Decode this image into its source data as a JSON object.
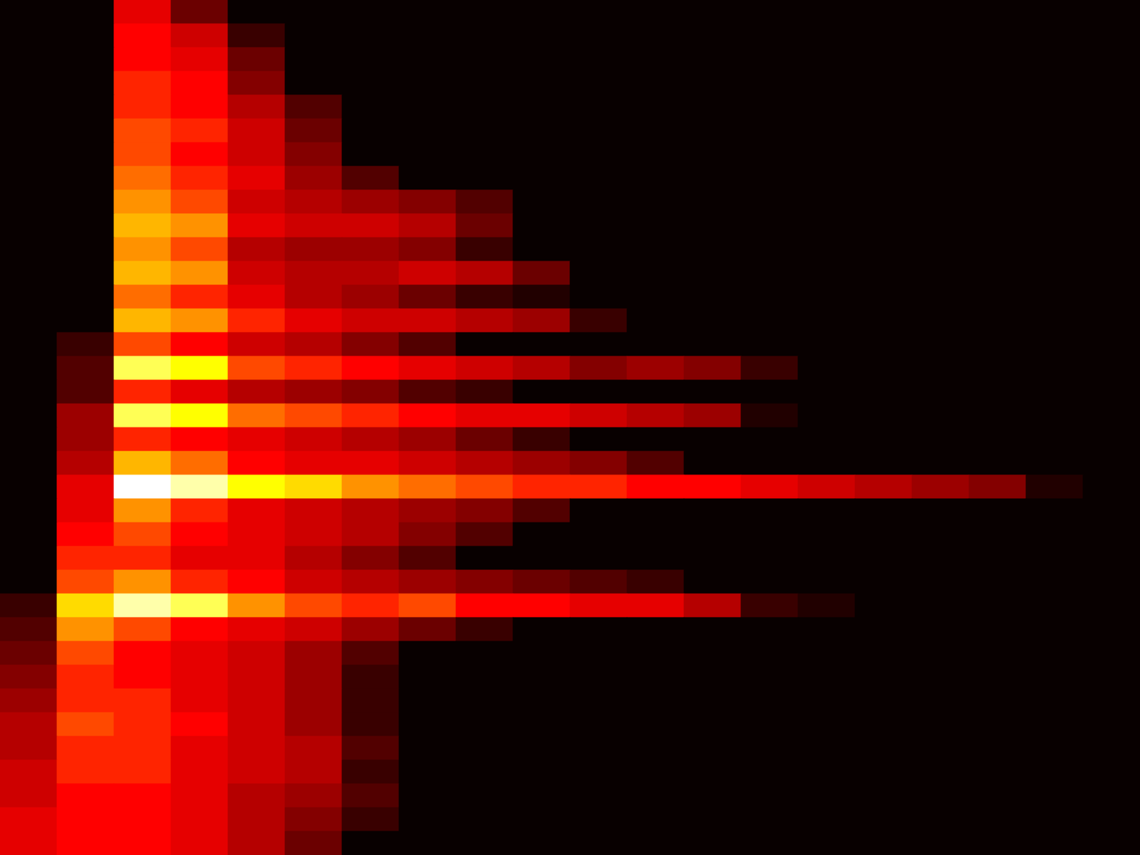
{
  "chart_data": {
    "type": "heatmap",
    "color": "hot",
    "tick_labels": false,
    "zlim": [
      0,
      1
    ],
    "cells": [
      [
        0,
        0,
        0.45,
        0.2,
        0,
        0,
        0,
        0,
        0,
        0,
        0,
        0,
        0,
        0,
        0,
        0,
        0,
        0,
        0,
        0
      ],
      [
        0,
        0,
        0.5,
        0.4,
        0.1,
        0,
        0,
        0,
        0,
        0,
        0,
        0,
        0,
        0,
        0,
        0,
        0,
        0,
        0,
        0
      ],
      [
        0,
        0,
        0.5,
        0.45,
        0.2,
        0,
        0,
        0,
        0,
        0,
        0,
        0,
        0,
        0,
        0,
        0,
        0,
        0,
        0,
        0
      ],
      [
        0,
        0,
        0.55,
        0.5,
        0.25,
        0,
        0,
        0,
        0,
        0,
        0,
        0,
        0,
        0,
        0,
        0,
        0,
        0,
        0,
        0
      ],
      [
        0,
        0,
        0.55,
        0.5,
        0.35,
        0.15,
        0,
        0,
        0,
        0,
        0,
        0,
        0,
        0,
        0,
        0,
        0,
        0,
        0,
        0
      ],
      [
        0,
        0,
        0.6,
        0.55,
        0.4,
        0.2,
        0,
        0,
        0,
        0,
        0,
        0,
        0,
        0,
        0,
        0,
        0,
        0,
        0,
        0
      ],
      [
        0,
        0,
        0.6,
        0.5,
        0.4,
        0.25,
        0,
        0,
        0,
        0,
        0,
        0,
        0,
        0,
        0,
        0,
        0,
        0,
        0,
        0
      ],
      [
        0,
        0,
        0.65,
        0.55,
        0.45,
        0.3,
        0.15,
        0,
        0,
        0,
        0,
        0,
        0,
        0,
        0,
        0,
        0,
        0,
        0,
        0
      ],
      [
        0,
        0,
        0.7,
        0.6,
        0.4,
        0.35,
        0.3,
        0.25,
        0.15,
        0,
        0,
        0,
        0,
        0,
        0,
        0,
        0,
        0,
        0,
        0
      ],
      [
        0,
        0,
        0.75,
        0.7,
        0.45,
        0.4,
        0.4,
        0.35,
        0.2,
        0,
        0,
        0,
        0,
        0,
        0,
        0,
        0,
        0,
        0,
        0
      ],
      [
        0,
        0,
        0.7,
        0.6,
        0.35,
        0.3,
        0.3,
        0.25,
        0.1,
        0,
        0,
        0,
        0,
        0,
        0,
        0,
        0,
        0,
        0,
        0
      ],
      [
        0,
        0,
        0.75,
        0.7,
        0.4,
        0.35,
        0.35,
        0.4,
        0.35,
        0.2,
        0,
        0,
        0,
        0,
        0,
        0,
        0,
        0,
        0,
        0
      ],
      [
        0,
        0,
        0.65,
        0.55,
        0.45,
        0.35,
        0.3,
        0.2,
        0.1,
        0.05,
        0,
        0,
        0,
        0,
        0,
        0,
        0,
        0,
        0,
        0
      ],
      [
        0,
        0,
        0.75,
        0.7,
        0.55,
        0.45,
        0.4,
        0.4,
        0.35,
        0.3,
        0.1,
        0,
        0,
        0,
        0,
        0,
        0,
        0,
        0,
        0
      ],
      [
        0,
        0.1,
        0.6,
        0.5,
        0.4,
        0.35,
        0.25,
        0.15,
        0,
        0,
        0,
        0,
        0,
        0,
        0,
        0,
        0,
        0,
        0,
        0
      ],
      [
        0,
        0.15,
        0.9,
        0.85,
        0.6,
        0.55,
        0.5,
        0.45,
        0.4,
        0.35,
        0.25,
        0.3,
        0.25,
        0.1,
        0,
        0,
        0,
        0,
        0,
        0
      ],
      [
        0,
        0.15,
        0.55,
        0.45,
        0.35,
        0.3,
        0.25,
        0.15,
        0.1,
        0,
        0,
        0,
        0,
        0,
        0,
        0,
        0,
        0,
        0,
        0
      ],
      [
        0,
        0.3,
        0.9,
        0.85,
        0.65,
        0.6,
        0.55,
        0.5,
        0.45,
        0.45,
        0.4,
        0.35,
        0.3,
        0.05,
        0,
        0,
        0,
        0,
        0,
        0
      ],
      [
        0,
        0.3,
        0.55,
        0.5,
        0.45,
        0.4,
        0.35,
        0.3,
        0.2,
        0.1,
        0,
        0,
        0,
        0,
        0,
        0,
        0,
        0,
        0,
        0
      ],
      [
        0,
        0.35,
        0.75,
        0.65,
        0.5,
        0.45,
        0.45,
        0.4,
        0.35,
        0.3,
        0.25,
        0.15,
        0,
        0,
        0,
        0,
        0,
        0,
        0,
        0
      ],
      [
        0,
        0.45,
        1.0,
        0.95,
        0.85,
        0.8,
        0.7,
        0.65,
        0.6,
        0.55,
        0.55,
        0.5,
        0.5,
        0.45,
        0.4,
        0.35,
        0.3,
        0.25,
        0.05,
        0
      ],
      [
        0,
        0.45,
        0.7,
        0.55,
        0.45,
        0.4,
        0.35,
        0.3,
        0.25,
        0.15,
        0,
        0,
        0,
        0,
        0,
        0,
        0,
        0,
        0,
        0
      ],
      [
        0,
        0.5,
        0.6,
        0.5,
        0.45,
        0.4,
        0.35,
        0.25,
        0.15,
        0,
        0,
        0,
        0,
        0,
        0,
        0,
        0,
        0,
        0,
        0
      ],
      [
        0,
        0.55,
        0.55,
        0.45,
        0.45,
        0.35,
        0.25,
        0.15,
        0,
        0,
        0,
        0,
        0,
        0,
        0,
        0,
        0,
        0,
        0,
        0
      ],
      [
        0,
        0.6,
        0.7,
        0.55,
        0.5,
        0.4,
        0.35,
        0.3,
        0.25,
        0.2,
        0.15,
        0.1,
        0,
        0,
        0,
        0,
        0,
        0,
        0,
        0
      ],
      [
        0.1,
        0.8,
        0.95,
        0.9,
        0.7,
        0.6,
        0.55,
        0.6,
        0.5,
        0.5,
        0.45,
        0.45,
        0.35,
        0.1,
        0.05,
        0,
        0,
        0,
        0,
        0
      ],
      [
        0.15,
        0.7,
        0.6,
        0.5,
        0.45,
        0.4,
        0.3,
        0.2,
        0.1,
        0,
        0,
        0,
        0,
        0,
        0,
        0,
        0,
        0,
        0,
        0
      ],
      [
        0.2,
        0.6,
        0.5,
        0.45,
        0.4,
        0.3,
        0.15,
        0,
        0,
        0,
        0,
        0,
        0,
        0,
        0,
        0,
        0,
        0,
        0,
        0
      ],
      [
        0.25,
        0.55,
        0.5,
        0.45,
        0.4,
        0.3,
        0.1,
        0,
        0,
        0,
        0,
        0,
        0,
        0,
        0,
        0,
        0,
        0,
        0,
        0
      ],
      [
        0.3,
        0.55,
        0.55,
        0.45,
        0.4,
        0.3,
        0.1,
        0,
        0,
        0,
        0,
        0,
        0,
        0,
        0,
        0,
        0,
        0,
        0,
        0
      ],
      [
        0.35,
        0.6,
        0.55,
        0.5,
        0.4,
        0.3,
        0.1,
        0,
        0,
        0,
        0,
        0,
        0,
        0,
        0,
        0,
        0,
        0,
        0,
        0
      ],
      [
        0.35,
        0.55,
        0.55,
        0.45,
        0.4,
        0.35,
        0.15,
        0,
        0,
        0,
        0,
        0,
        0,
        0,
        0,
        0,
        0,
        0,
        0,
        0
      ],
      [
        0.4,
        0.55,
        0.55,
        0.45,
        0.4,
        0.35,
        0.1,
        0,
        0,
        0,
        0,
        0,
        0,
        0,
        0,
        0,
        0,
        0,
        0,
        0
      ],
      [
        0.4,
        0.5,
        0.5,
        0.45,
        0.35,
        0.3,
        0.15,
        0,
        0,
        0,
        0,
        0,
        0,
        0,
        0,
        0,
        0,
        0,
        0,
        0
      ],
      [
        0.45,
        0.5,
        0.5,
        0.45,
        0.35,
        0.25,
        0.1,
        0,
        0,
        0,
        0,
        0,
        0,
        0,
        0,
        0,
        0,
        0,
        0,
        0
      ],
      [
        0.45,
        0.5,
        0.5,
        0.45,
        0.35,
        0.2,
        0,
        0,
        0,
        0,
        0,
        0,
        0,
        0,
        0,
        0,
        0,
        0,
        0,
        0
      ]
    ]
  }
}
